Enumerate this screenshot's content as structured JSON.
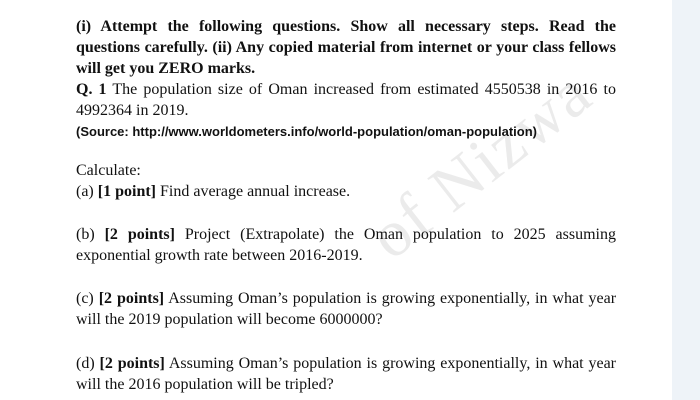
{
  "watermark": "of Nizwa",
  "instructions": {
    "part1": "(i) Attempt the following questions. Show all necessary steps. Read the questions carefully.",
    "part2": "(ii) Any copied material from internet or your class fellows will get you ZERO marks."
  },
  "question": {
    "label": "Q. 1",
    "text": "The population size of Oman increased from estimated 4550538 in 2016 to 4992364 in 2019.",
    "source": "(Source: http://www.worldometers.info/world-population/oman-population)"
  },
  "calculate": "Calculate:",
  "parts": [
    {
      "letter": "(a)",
      "points": "[1 point]",
      "text": "Find average annual increase."
    },
    {
      "letter": "(b)",
      "points": "[2 points]",
      "text": "Project (Extrapolate) the Oman population to 2025 assuming exponential growth rate between 2016-2019."
    },
    {
      "letter": "(c)",
      "points": "[2 points]",
      "text": "Assuming Oman’s population is growing exponentially, in what year will the 2019 population will become 6000000?"
    },
    {
      "letter": "(d)",
      "points": "[2 points]",
      "text": "Assuming Oman’s population is growing exponentially, in what year will the 2016 population will be tripled?"
    }
  ]
}
